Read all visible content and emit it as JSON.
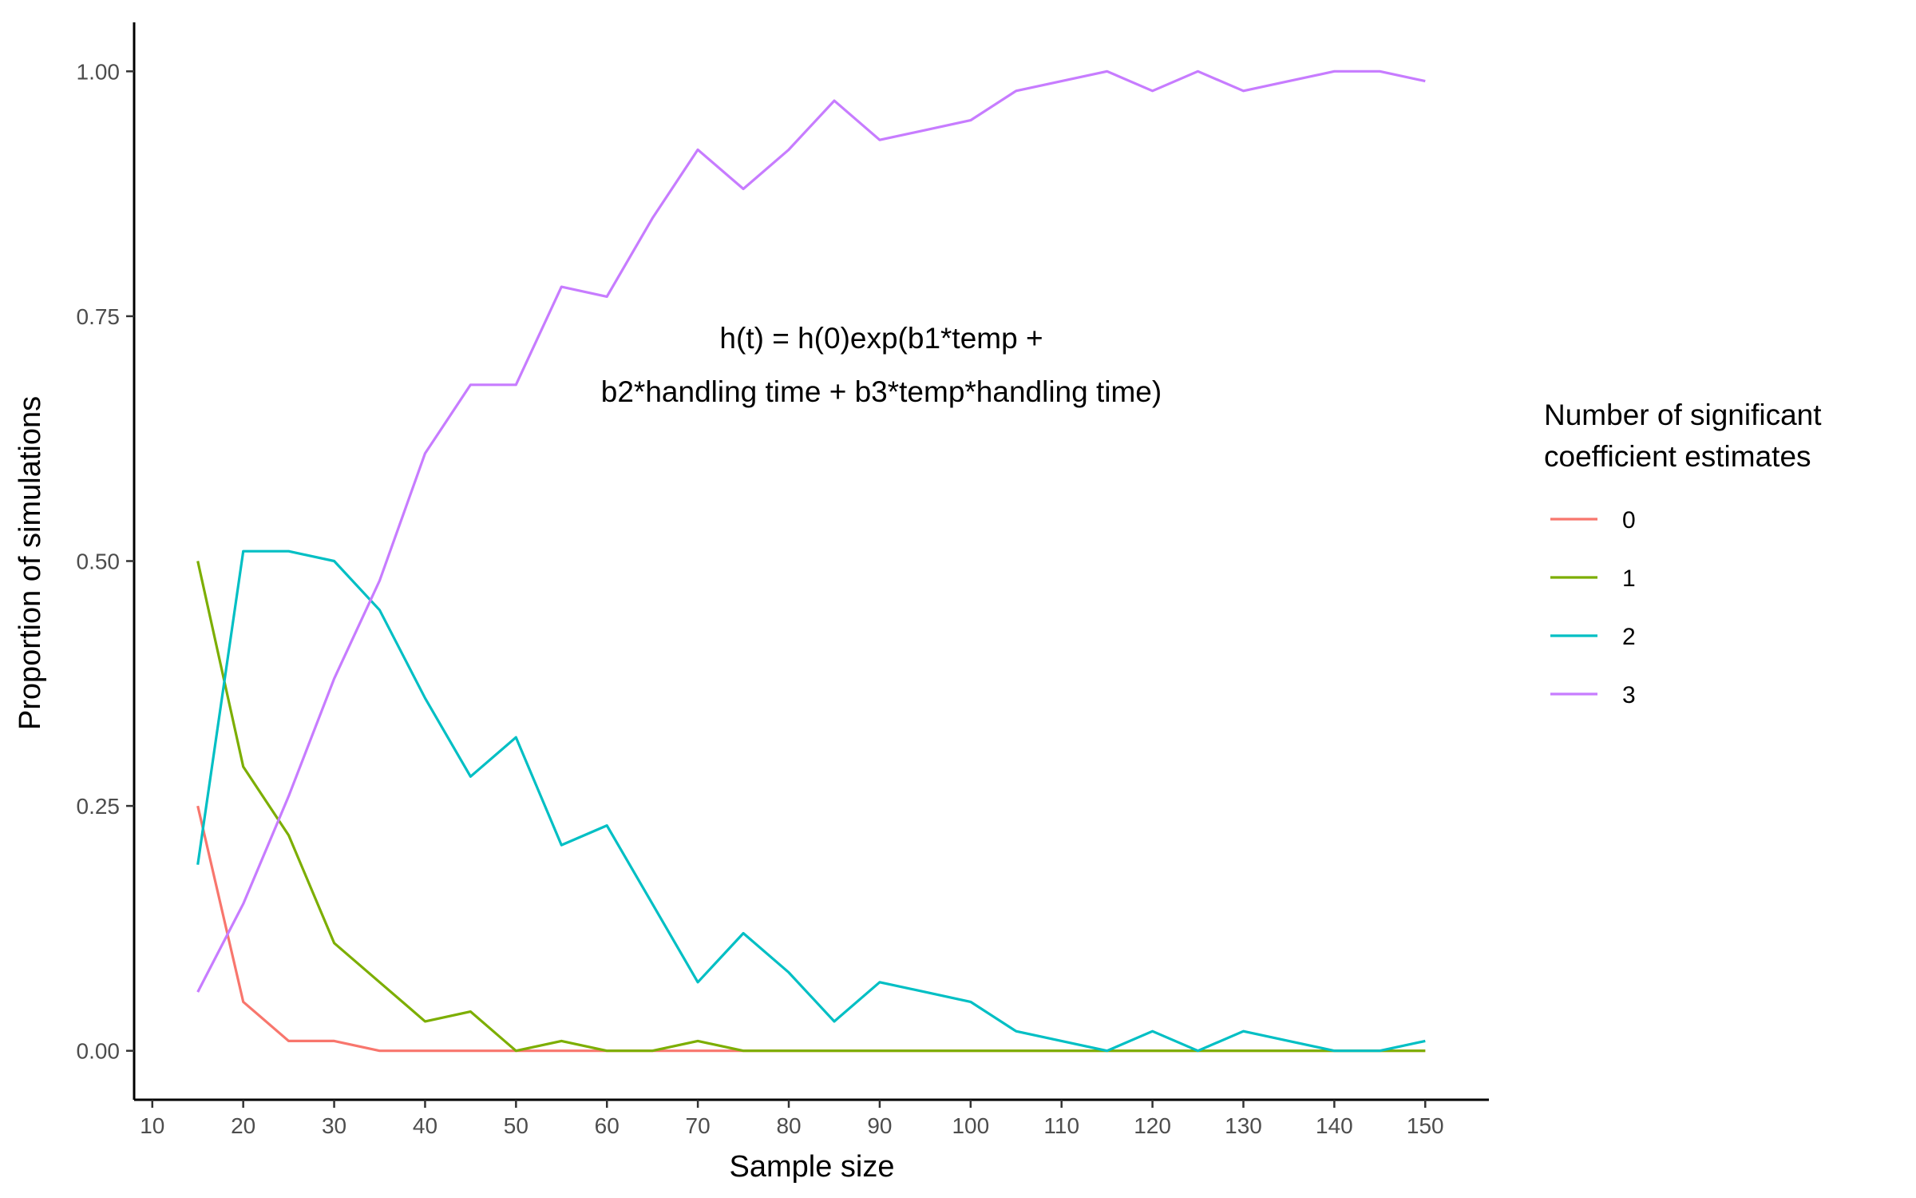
{
  "chart_data": {
    "type": "line",
    "title": "",
    "xlabel": "Sample size",
    "ylabel": "Proportion of simulations",
    "xlim": [
      8,
      157
    ],
    "ylim": [
      -0.05,
      1.05
    ],
    "x_ticks": [
      10,
      20,
      30,
      40,
      50,
      60,
      70,
      80,
      90,
      100,
      110,
      120,
      130,
      140,
      150
    ],
    "x_tick_labels": [
      "10",
      "20",
      "30",
      "40",
      "50",
      "60",
      "70",
      "80",
      "90",
      "100",
      "110",
      "120",
      "130",
      "140",
      "150"
    ],
    "y_ticks": [
      0,
      0.25,
      0.5,
      0.75,
      1.0
    ],
    "y_tick_labels": [
      "0.00",
      "0.25",
      "0.50",
      "0.75",
      "1.00"
    ],
    "grid": false,
    "legend": {
      "title_lines": [
        "Number of significant",
        "coefficient estimates"
      ],
      "position": "right"
    },
    "annotation_lines": [
      "h(t) = h(0)exp(b1*temp +",
      "b2*handling time + b3*temp*handling time)"
    ],
    "x": [
      15,
      20,
      25,
      30,
      35,
      40,
      45,
      50,
      55,
      60,
      65,
      70,
      75,
      80,
      85,
      90,
      95,
      100,
      105,
      110,
      115,
      120,
      125,
      130,
      135,
      140,
      145,
      150
    ],
    "series": [
      {
        "name": "0",
        "color": "#F8766D",
        "values": [
          0.25,
          0.05,
          0.01,
          0.01,
          0,
          0,
          0,
          0,
          0,
          0,
          0,
          0,
          0,
          0,
          0,
          0,
          0,
          0,
          0,
          0,
          0,
          0,
          0,
          0,
          0,
          0,
          0,
          0
        ]
      },
      {
        "name": "1",
        "color": "#7CAE00",
        "values": [
          0.5,
          0.29,
          0.22,
          0.11,
          0.07,
          0.03,
          0.04,
          0.0,
          0.01,
          0,
          0,
          0.01,
          0,
          0,
          0,
          0,
          0,
          0,
          0,
          0,
          0,
          0,
          0,
          0,
          0,
          0,
          0,
          0
        ]
      },
      {
        "name": "2",
        "color": "#00BFC4",
        "values": [
          0.19,
          0.51,
          0.51,
          0.5,
          0.45,
          0.36,
          0.28,
          0.32,
          0.21,
          0.23,
          0.15,
          0.07,
          0.12,
          0.08,
          0.03,
          0.07,
          0.06,
          0.05,
          0.02,
          0.01,
          0.0,
          0.02,
          0.0,
          0.02,
          0.01,
          0.0,
          0.0,
          0.01
        ]
      },
      {
        "name": "3",
        "color": "#C77CFF",
        "values": [
          0.06,
          0.15,
          0.26,
          0.38,
          0.48,
          0.61,
          0.68,
          0.68,
          0.78,
          0.77,
          0.85,
          0.92,
          0.88,
          0.92,
          0.97,
          0.93,
          0.94,
          0.95,
          0.98,
          0.99,
          1.0,
          0.98,
          1.0,
          0.98,
          0.99,
          1.0,
          1.0,
          0.99
        ]
      }
    ]
  }
}
